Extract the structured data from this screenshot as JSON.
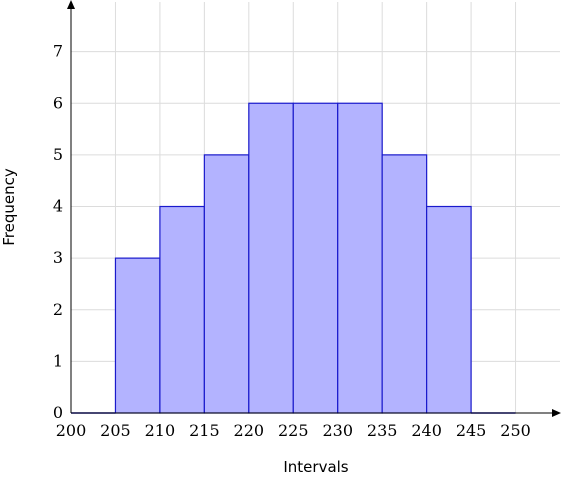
{
  "chart_data": {
    "type": "bar",
    "title": "",
    "xlabel": "Intervals",
    "ylabel": "Frequency",
    "bins": [
      {
        "start": 200,
        "end": 205,
        "value": 0
      },
      {
        "start": 205,
        "end": 210,
        "value": 3
      },
      {
        "start": 210,
        "end": 215,
        "value": 4
      },
      {
        "start": 215,
        "end": 220,
        "value": 5
      },
      {
        "start": 220,
        "end": 225,
        "value": 6
      },
      {
        "start": 225,
        "end": 230,
        "value": 6
      },
      {
        "start": 230,
        "end": 235,
        "value": 6
      },
      {
        "start": 235,
        "end": 240,
        "value": 5
      },
      {
        "start": 240,
        "end": 245,
        "value": 4
      },
      {
        "start": 245,
        "end": 250,
        "value": 0
      }
    ],
    "xticks": [
      200,
      205,
      210,
      215,
      220,
      225,
      230,
      235,
      240,
      245,
      250
    ],
    "yticks": [
      0,
      1,
      2,
      3,
      4,
      5,
      6,
      7
    ],
    "xlim": [
      200,
      255
    ],
    "ylim": [
      0,
      8
    ],
    "grid": true,
    "colors": {
      "bar_fill": "#b3b3ff",
      "bar_stroke": "#1a1acc",
      "grid": "#dcdcdc",
      "axis": "#000000"
    }
  }
}
